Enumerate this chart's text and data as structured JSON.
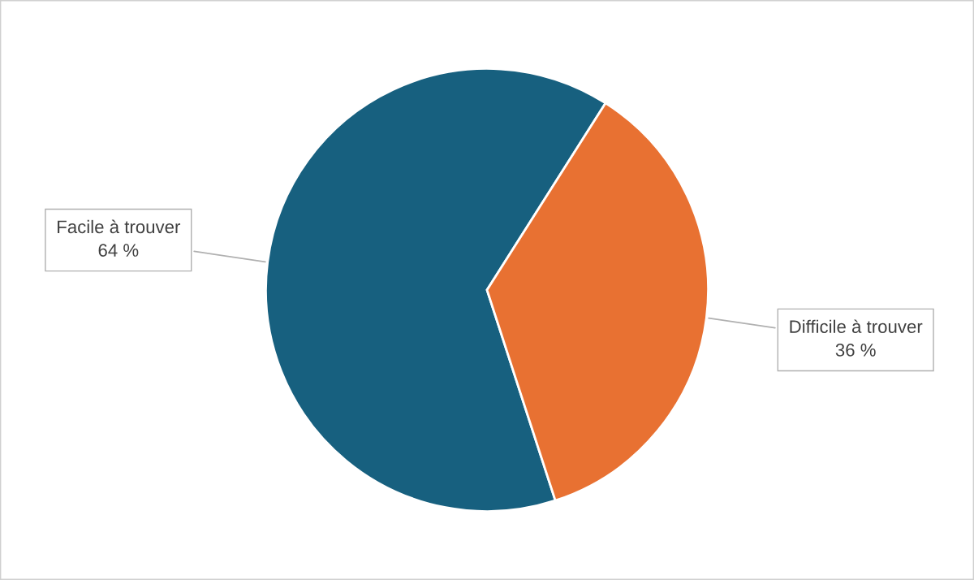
{
  "chart_data": {
    "type": "pie",
    "categories": [
      "Facile à trouver",
      "Difficile à trouver"
    ],
    "values": [
      64,
      36
    ],
    "value_labels": [
      "64 %",
      "36 %"
    ],
    "colors": [
      "#17607f",
      "#e87132"
    ]
  }
}
